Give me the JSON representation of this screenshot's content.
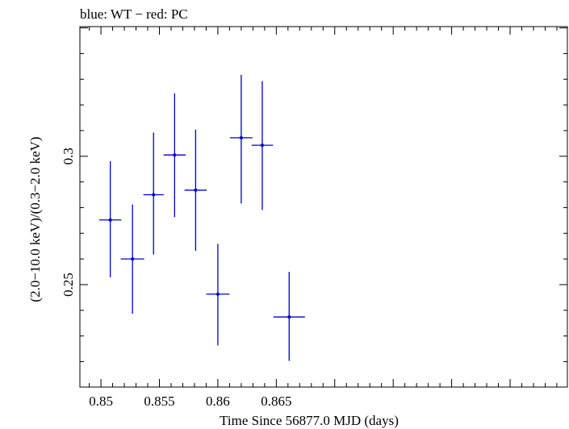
{
  "chart_data": {
    "type": "scatter",
    "title": "blue: WT − red: PC",
    "xlabel": "Time Since 56877.0 MJD (days)",
    "ylabel": "(2.0−10.0 keV)/(0.3−2.0 keV)",
    "xlim": [
      0.8482,
      0.8899
    ],
    "ylim": [
      0.2101,
      0.3505
    ],
    "x_ticks": [
      0.85,
      0.855,
      0.86,
      0.865
    ],
    "x_tick_labels": [
      "0.85",
      "0.855",
      "0.86",
      "0.865"
    ],
    "y_ticks": [
      0.25,
      0.3
    ],
    "y_tick_labels": [
      "0.25",
      "0.3"
    ],
    "grid": false,
    "series": [
      {
        "name": "WT",
        "color": "#0000cc",
        "points": [
          {
            "x": 0.8508,
            "y": 0.2752,
            "xerr": 0.00095,
            "ylo": 0.2528,
            "yhi": 0.2981
          },
          {
            "x": 0.8527,
            "y": 0.26,
            "xerr": 0.001,
            "ylo": 0.2387,
            "yhi": 0.2812
          },
          {
            "x": 0.8545,
            "y": 0.285,
            "xerr": 0.00087,
            "ylo": 0.2617,
            "yhi": 0.3092
          },
          {
            "x": 0.8563,
            "y": 0.3005,
            "xerr": 0.00095,
            "ylo": 0.2763,
            "yhi": 0.3245
          },
          {
            "x": 0.8581,
            "y": 0.2868,
            "xerr": 0.00095,
            "ylo": 0.2632,
            "yhi": 0.3104
          },
          {
            "x": 0.86,
            "y": 0.2463,
            "xerr": 0.001,
            "ylo": 0.2263,
            "yhi": 0.2659
          },
          {
            "x": 0.862,
            "y": 0.3072,
            "xerr": 0.00097,
            "ylo": 0.2816,
            "yhi": 0.3317
          },
          {
            "x": 0.8638,
            "y": 0.3043,
            "xerr": 0.00092,
            "ylo": 0.2791,
            "yhi": 0.3293
          },
          {
            "x": 0.8661,
            "y": 0.2374,
            "xerr": 0.00135,
            "ylo": 0.2203,
            "yhi": 0.255
          }
        ]
      }
    ]
  }
}
